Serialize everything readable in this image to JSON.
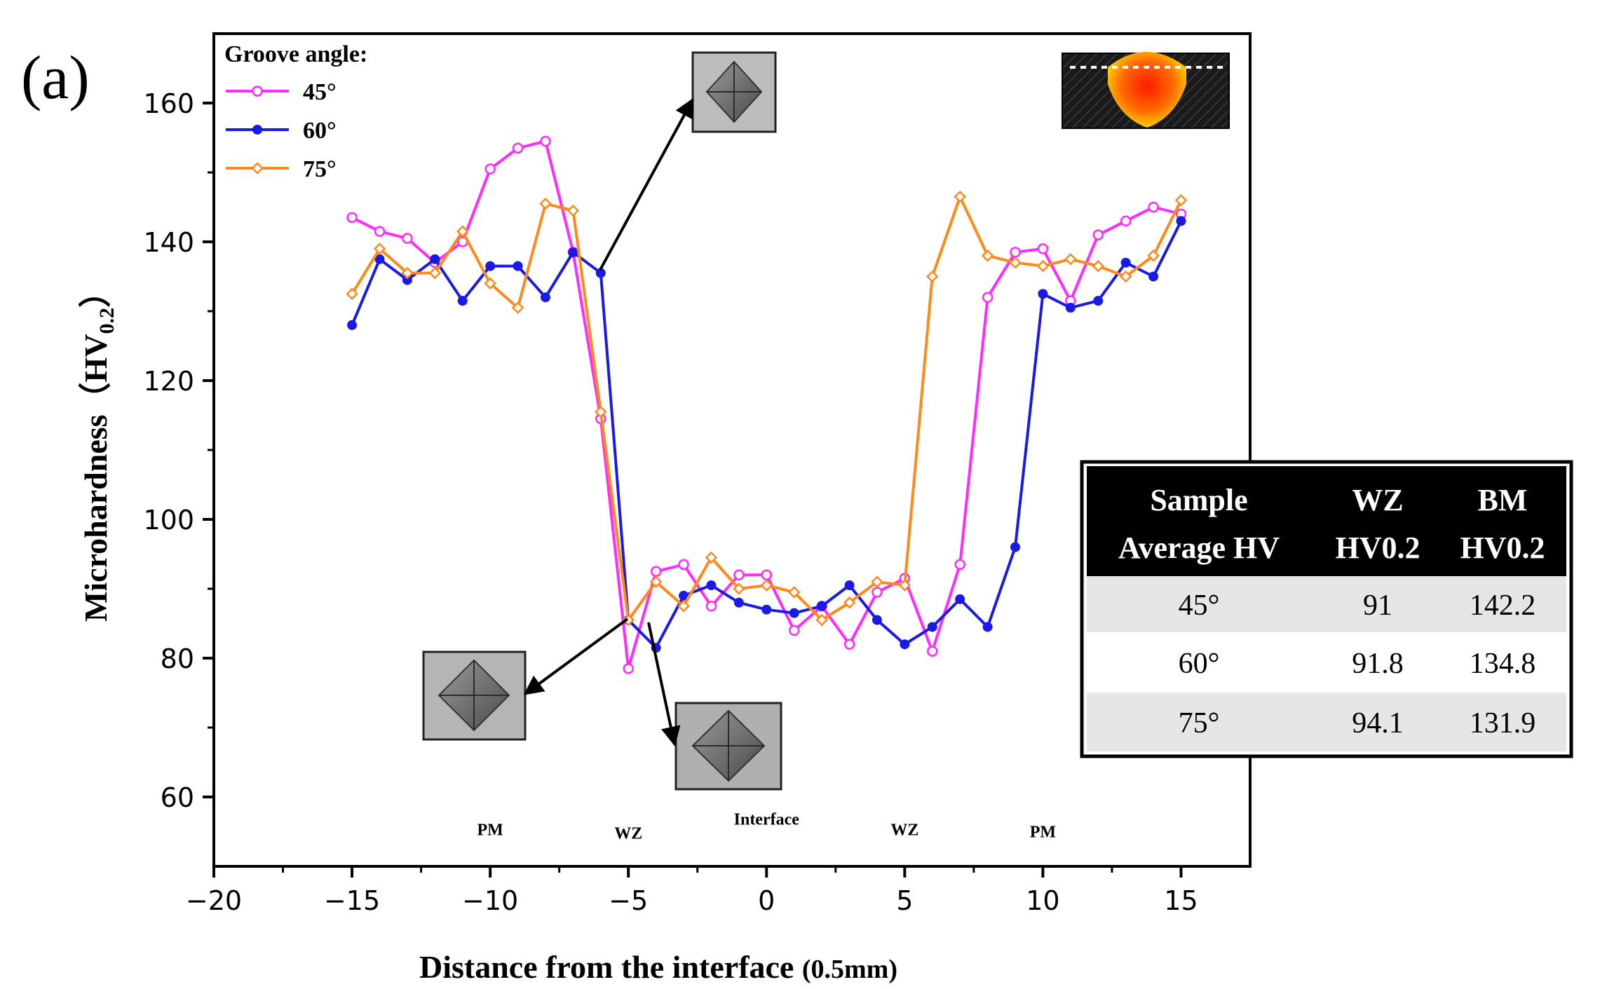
{
  "panel_label": "(a)",
  "chart_data": {
    "type": "line",
    "title": "",
    "xlabel_main": "Distance from the interface",
    "xlabel_unit": "(0.5mm)",
    "ylabel_main": "Microhardness",
    "ylabel_sym": "（HV",
    "ylabel_sub": "0.2",
    "ylabel_close": "）",
    "xlim": [
      -20,
      17.5
    ],
    "ylim": [
      50,
      170
    ],
    "xticks": [
      -20,
      -15,
      -10,
      -5,
      0,
      5,
      10,
      15
    ],
    "xtick_labels": [
      "−20",
      "−15",
      "−10",
      "−5",
      "0",
      "5",
      "10",
      "15"
    ],
    "yticks": [
      60,
      80,
      100,
      120,
      140,
      160
    ],
    "ytick_labels": [
      "60",
      "80",
      "100",
      "120",
      "140",
      "160"
    ],
    "legend_title": "Groove angle:",
    "legend_position": "top-left",
    "x": [
      -15,
      -14,
      -13,
      -12,
      -11,
      -10,
      -9,
      -8,
      -7,
      -6,
      -5,
      -4,
      -3,
      -2,
      -1,
      0,
      1,
      2,
      3,
      4,
      5,
      6,
      7,
      8,
      9,
      10,
      11,
      12,
      13,
      14,
      15
    ],
    "series": [
      {
        "name": "45°",
        "color": "#ff2bff",
        "marker": "circle-open",
        "values": [
          143.5,
          141.5,
          140.5,
          137,
          140,
          150.5,
          153.5,
          154.5,
          138.5,
          114.5,
          78.5,
          92.5,
          93.5,
          87.5,
          92,
          92,
          84,
          87.5,
          82,
          89.5,
          91.5,
          81,
          93.5,
          132,
          138.5,
          139,
          131.5,
          141,
          143,
          145,
          144
        ]
      },
      {
        "name": "60°",
        "color": "#1a1ae6",
        "marker": "circle-filled",
        "values": [
          128,
          137.5,
          134.5,
          137.5,
          131.5,
          136.5,
          136.5,
          132,
          138.5,
          135.5,
          85.5,
          81.5,
          89,
          90.5,
          88,
          87,
          86.5,
          87.5,
          90.5,
          85.5,
          82,
          84.5,
          88.5,
          84.5,
          96,
          132.5,
          130.5,
          131.5,
          137,
          135,
          143
        ]
      },
      {
        "name": "75°",
        "color": "#ff8a1a",
        "marker": "diamond-open",
        "values": [
          132.5,
          139,
          135.5,
          135.5,
          141.5,
          134,
          130.5,
          145.5,
          144.5,
          115.5,
          85.5,
          91,
          87.5,
          94.5,
          90,
          90.5,
          89.5,
          85.5,
          88,
          91,
          90.5,
          135,
          146.5,
          138,
          137,
          136.5,
          137.5,
          136.5,
          135,
          138,
          146
        ]
      }
    ],
    "region_labels": [
      {
        "text": "PM",
        "x": -10,
        "y": 54.5
      },
      {
        "text": "WZ",
        "x": -5,
        "y": 54
      },
      {
        "text": "Interface",
        "x": 0,
        "y": 56
      },
      {
        "text": "WZ",
        "x": 5,
        "y": 54.5
      },
      {
        "text": "PM",
        "x": 10,
        "y": 54.2
      }
    ],
    "annotation_targets": [
      {
        "name": "arrow-upper",
        "from": [
          -6,
          135.5
        ]
      },
      {
        "name": "arrow-lower-left",
        "from": [
          -5,
          85.5
        ]
      },
      {
        "name": "arrow-lower-right",
        "from": [
          -5,
          85.5
        ]
      }
    ],
    "table": {
      "headers": [
        [
          "Sample",
          "Average HV"
        ],
        [
          "WZ",
          "HV0.2"
        ],
        [
          "BM",
          "HV0.2"
        ]
      ],
      "rows": [
        [
          "45°",
          "91",
          "142.2"
        ],
        [
          "60°",
          "91.8",
          "134.8"
        ],
        [
          "75°",
          "94.1",
          "131.9"
        ]
      ]
    }
  }
}
